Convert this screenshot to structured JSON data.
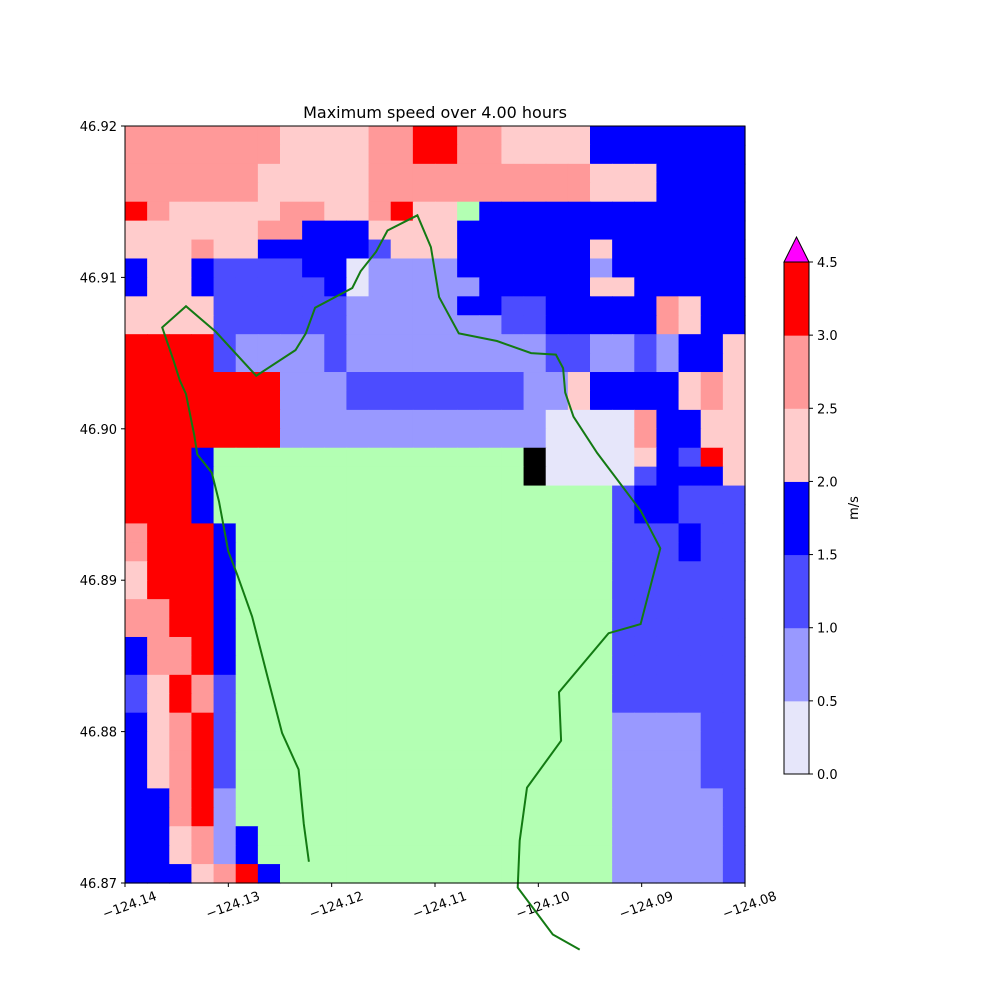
{
  "chart_data": {
    "type": "heatmap",
    "title": "Maximum speed over 4.00 hours",
    "xlim": [
      -124.14,
      -124.08
    ],
    "ylim": [
      46.87,
      46.92
    ],
    "x_ticks": [
      -124.14,
      -124.13,
      -124.12,
      -124.11,
      -124.1,
      -124.09,
      -124.08
    ],
    "x_tick_labels": [
      "−124.14",
      "−124.13",
      "−124.12",
      "−124.11",
      "−124.10",
      "−124.09",
      "−124.08"
    ],
    "y_ticks": [
      46.87,
      46.88,
      46.89,
      46.9,
      46.91,
      46.92
    ],
    "y_tick_labels": [
      "46.87",
      "46.88",
      "46.89",
      "46.90",
      "46.91",
      "46.92"
    ],
    "grid": false,
    "colorbar": {
      "label": "m/s",
      "bounds": [
        0.0,
        0.5,
        1.0,
        1.5,
        2.0,
        2.5,
        3.0,
        4.5
      ],
      "tick_values": [
        0.0,
        0.5,
        1.0,
        1.5,
        2.0,
        2.5,
        3.0,
        4.5
      ],
      "tick_labels": [
        "0.0",
        "0.5",
        "1.0",
        "1.5",
        "2.0",
        "2.5",
        "3.0",
        "4.5"
      ],
      "colors": [
        "#e6e6fa",
        "#9999ff",
        "#4c4cff",
        "#0000ff",
        "#ffcccc",
        "#ff9999",
        "#ff0000"
      ],
      "extend_max_color": "#ff00ff"
    },
    "masked_color": "#b3ffb3",
    "cell_classes_top_to_bottom": [
      "5555555444455665544443333333",
      "5555555444455665544443333333",
      "5555554444455555555554443333",
      "5555554444455555555554443333",
      "6544444554456449333333333333",
      "4444445533344443333333333333",
      "4445443333324443333334333333",
      "3443222233011113333331333333",
      "3443222223011111333334433333",
      "4444222222111113322333335433",
      "4444222222111111122333335433",
      "6666211112111111111221121334",
      "6666211112111111111221121334",
      "6666666111222222221143333454",
      "6666666111222222221143333454",
      "6666666111111111111000053344",
      "6666666111111111111000053344",
      "6663999999999999998000043264",
      "6663999999999999998000023334",
      "6663999999999999999999233222",
      "6663999999999999999999233222",
      "5666399999999999999999222322",
      "5666399999999999999999222322",
      "4666399999999999999999222222",
      "4666399999999999999999222222",
      "5566399999999999999999222222",
      "5566399999999999999999222222",
      "3556399999999999999999222222",
      "3556399999999999999999222222",
      "2465299999999999999999222222",
      "2465299999999999999999222222",
      "3456299999999999999999111122",
      "3456299999999999999999111122",
      "3456299999999999999999111122",
      "3456299999999999999999111122",
      "3356199999999999999999111112",
      "3356199999999999999999111112",
      "3345139999999999999999111112",
      "3345139999999999999999111112",
      "3334563999999999999999111112"
    ],
    "note_cells": "",
    "green_line": {
      "x": [
        -124.1222,
        -124.1227,
        -124.1232,
        -124.1248,
        -124.1262,
        -124.1277,
        -124.1291,
        -124.13,
        -124.1309,
        -124.1316,
        -124.1323,
        -124.133,
        -124.1333,
        -124.1341,
        -124.1347,
        -124.1353,
        -124.1364,
        -124.1341,
        -124.1312,
        -124.1273,
        -124.1235,
        -124.1225,
        -124.1216,
        -124.118,
        -124.1172,
        -124.1157,
        -124.1146,
        -124.1117,
        -124.1104,
        -124.1096,
        -124.1077,
        -124.104,
        -124.1007,
        -124.0983,
        -124.0976,
        -124.0974,
        -124.0966,
        -124.0943,
        -124.0901,
        -124.0882,
        -124.0901,
        -124.0932,
        -124.098,
        -124.0978,
        -124.1011,
        -124.1018,
        -124.102,
        -124.0986,
        -124.096
      ],
      "y": [
        46.8714,
        46.8739,
        46.8775,
        46.8799,
        46.8836,
        46.8876,
        46.8903,
        46.8919,
        46.8952,
        46.8971,
        46.8977,
        46.8983,
        46.8996,
        46.9023,
        46.9032,
        46.9045,
        46.9067,
        46.9081,
        46.9064,
        46.9035,
        46.9052,
        46.9063,
        46.908,
        46.9093,
        46.9104,
        46.9117,
        46.9131,
        46.9141,
        46.912,
        46.9087,
        46.9063,
        46.9058,
        46.905,
        46.9049,
        46.904,
        46.9024,
        46.9008,
        46.8984,
        46.8946,
        46.8921,
        46.8871,
        46.8865,
        46.8826,
        46.8794,
        46.8763,
        46.8728,
        46.8697,
        46.8666,
        46.8656
      ]
    }
  }
}
